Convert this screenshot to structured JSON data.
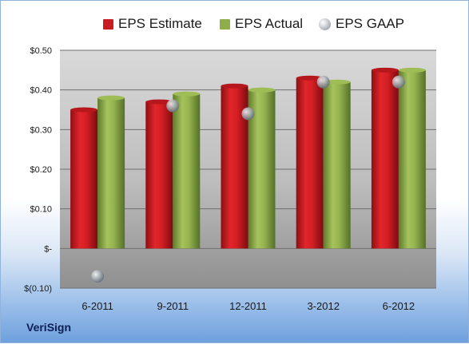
{
  "company": "VeriSign",
  "chart_data": {
    "type": "bar",
    "categories": [
      "6-2011",
      "9-2011",
      "12-2011",
      "3-2012",
      "6-2012"
    ],
    "series": [
      {
        "name": "EPS Estimate",
        "kind": "bar",
        "color": "#c81e23",
        "values": [
          0.35,
          0.37,
          0.41,
          0.43,
          0.45
        ]
      },
      {
        "name": "EPS Actual",
        "kind": "bar",
        "color": "#8fae4a",
        "values": [
          0.38,
          0.39,
          0.4,
          0.42,
          0.45
        ]
      },
      {
        "name": "EPS GAAP",
        "kind": "marker",
        "color": "#a9b0b8",
        "values": [
          -0.07,
          0.36,
          0.34,
          0.42,
          0.42
        ]
      }
    ],
    "ylim": [
      -0.1,
      0.5
    ],
    "yticks": [
      0.5,
      0.4,
      0.3,
      0.2,
      0.1,
      0.0,
      -0.1
    ],
    "ytick_labels": [
      "$0.50",
      "$0.40",
      "$0.30",
      "$0.20",
      "$0.10",
      "$-",
      "$(0.10)"
    ],
    "grid": true,
    "legend_position": "top-center",
    "title": "",
    "xlabel": "",
    "ylabel": ""
  }
}
